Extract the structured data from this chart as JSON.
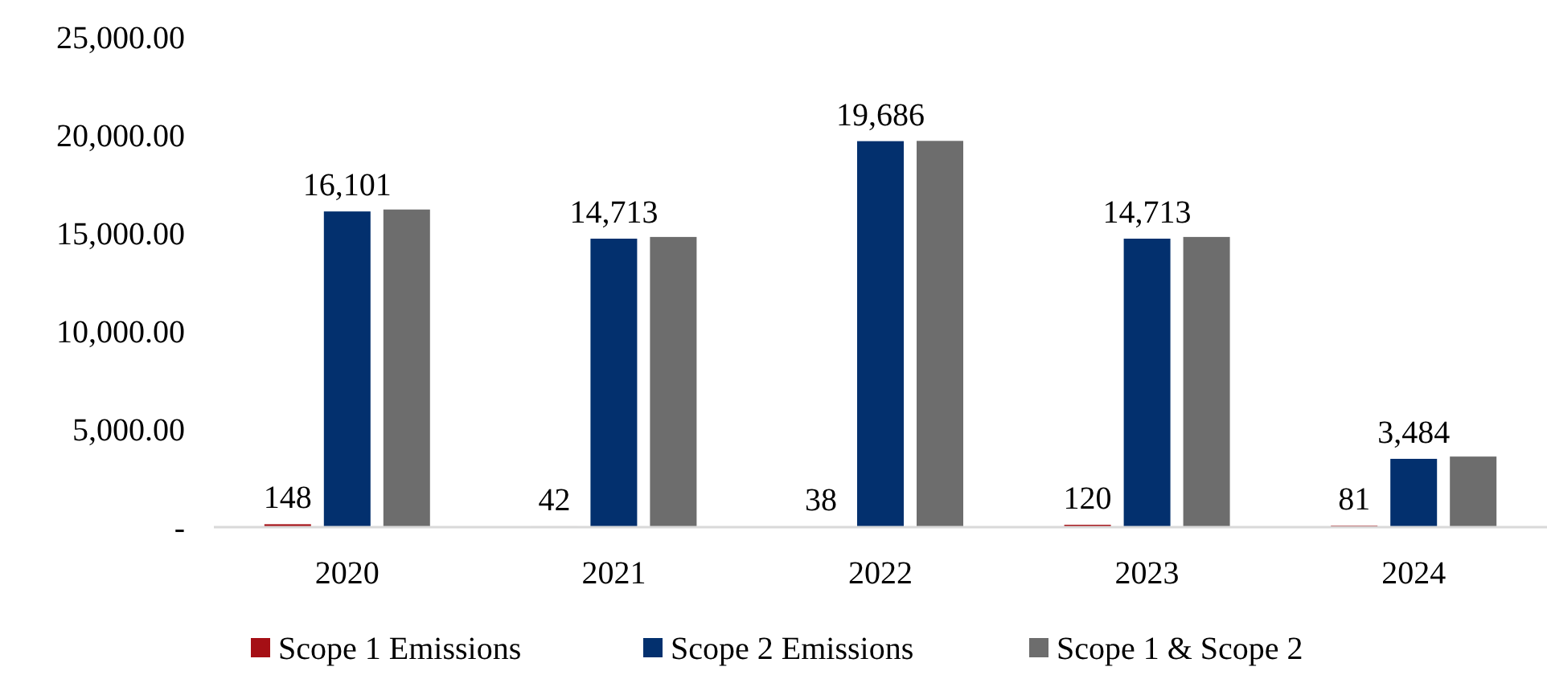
{
  "chart_data": {
    "type": "bar",
    "categories": [
      "2020",
      "2021",
      "2022",
      "2023",
      "2024"
    ],
    "series": [
      {
        "name": "Scope 1 Emissions",
        "color": "#a50f15",
        "values": [
          148,
          42,
          38,
          120,
          81
        ],
        "value_labels": [
          "148",
          "42",
          "38",
          "120",
          "81"
        ]
      },
      {
        "name": "Scope 2 Emissions",
        "color": "#03306e",
        "values": [
          16101,
          14713,
          19686,
          14713,
          3484
        ],
        "value_labels": [
          "16,101",
          "14,713",
          "19,686",
          "14,713",
          "3,484"
        ]
      },
      {
        "name": "Scope 1 & Scope 2",
        "color": "#6d6d6d",
        "values": [
          16200,
          14800,
          19700,
          14800,
          3600
        ]
      }
    ],
    "ylim": [
      0,
      25000
    ],
    "yticks": [
      {
        "value": 0,
        "label": "-"
      },
      {
        "value": 5000,
        "label": "5,000.00"
      },
      {
        "value": 10000,
        "label": "10,000.00"
      },
      {
        "value": 15000,
        "label": "15,000.00"
      },
      {
        "value": 20000,
        "label": "20,000.00"
      },
      {
        "value": 25000,
        "label": "25,000.00"
      }
    ],
    "grid": false,
    "legend": "bottom"
  }
}
